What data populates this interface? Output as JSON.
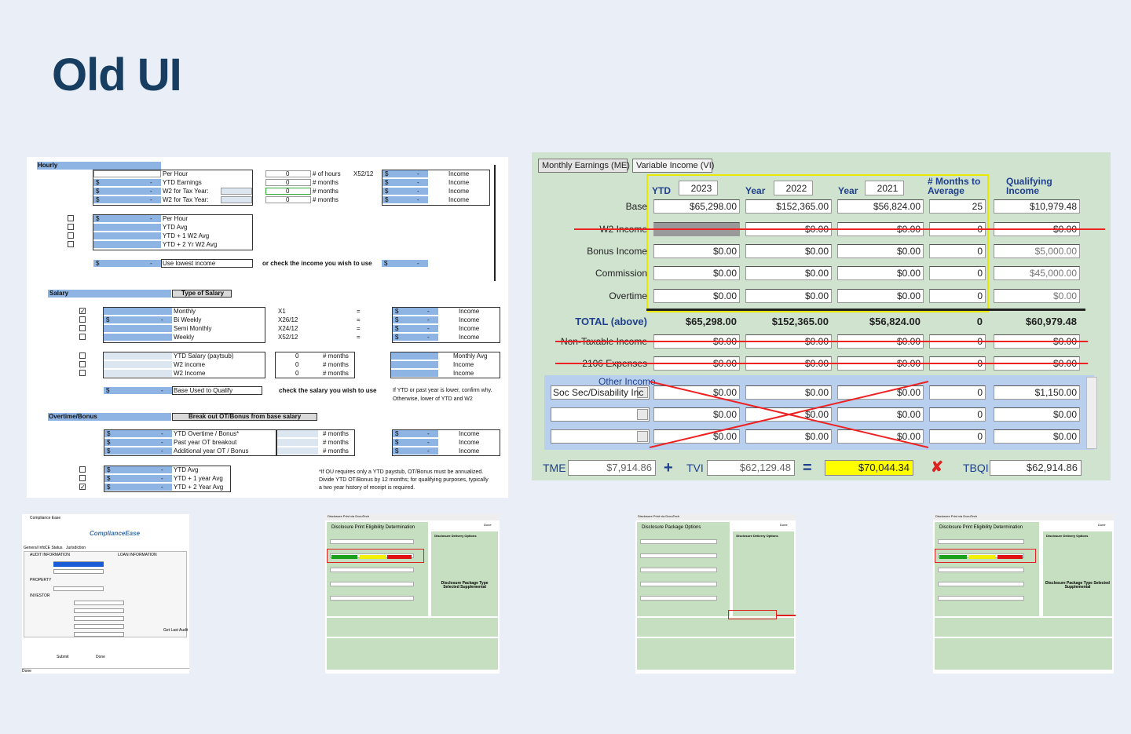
{
  "title": "Old UI",
  "worksheet": {
    "symbols": {
      "dollar": "$",
      "dash": "-"
    },
    "hourly": {
      "header": "Hourly",
      "rows": [
        "Per Hour",
        "YTD Earnings",
        "W2 for Tax Year:",
        "W2 for Tax Year:"
      ],
      "inputs": [
        "0",
        "0",
        "0",
        "0"
      ],
      "units": [
        "# of hours",
        "# months",
        "# months",
        "# months"
      ],
      "formula": "X52/12",
      "result": "Income",
      "averages": [
        "Per Hour",
        "YTD Avg",
        "YTD + 1 W2 Avg",
        "YTD + 2 Yr W2 Avg"
      ],
      "lowest": "Use lowest income",
      "choose": "or check the income you wish to use"
    },
    "salary": {
      "header": "Salary",
      "type_label": "Type of Salary",
      "rows": [
        "Monthly",
        "Bi Weekly",
        "Semi Monthly",
        "Weekly"
      ],
      "checked": [
        true,
        false,
        false,
        false
      ],
      "factors": [
        "X1",
        "X26/12",
        "X24/12",
        "X52/12"
      ],
      "equals": "=",
      "result": "Income",
      "ytd_rows": [
        "YTD Salary (paytsub)",
        "W2 income",
        "W2 Income"
      ],
      "ytd_inputs": [
        "0",
        "0",
        "0"
      ],
      "months": "# months",
      "avg_labels": [
        "Monthly Avg",
        "Income",
        "Income"
      ],
      "base": "Base Used to Qualify",
      "choose": "check the salary you wish to use",
      "note": [
        "If YTD or past year is lower, confirm why.",
        "Otherwise, lower of YTD and W2"
      ]
    },
    "overtime": {
      "header": "Overtime/Bonus",
      "subheader": "Break out OT/Bonus from base salary",
      "rows": [
        "YTD Overtime / Bonus*",
        "Past year OT breakout",
        "Additional year OT / Bonus"
      ],
      "months": "# months",
      "result": "Income",
      "averages": [
        "YTD Avg",
        "YTD + 1 year Avg",
        "YTD + 2 Year Avg"
      ],
      "checked": [
        false,
        false,
        true
      ],
      "note": [
        "*If OU requires only a YTD paystub, OT/Bonus must be annualized.",
        "Divide YTD OT/Bonus by 12 months; for qualifying purposes, typically",
        "a two year history of receipt is required."
      ]
    }
  },
  "variable_income": {
    "tabs": [
      "Monthly Earnings (ME)",
      "Variable Income (VI)"
    ],
    "headers": {
      "ytd": "YTD",
      "year1": "2023",
      "year_label": "Year",
      "year2": "2022",
      "year3": "2021",
      "months": "# Months to Average",
      "qualifying": "Qualifying Income"
    },
    "rows": [
      {
        "label": "Base",
        "values": [
          "$65,298.00",
          "$152,365.00",
          "$56,824.00",
          "25",
          "$10,979.48"
        ]
      },
      {
        "label": "W2 Income",
        "values": [
          null,
          "$0.00",
          "$0.00",
          "0",
          "$0.00"
        ],
        "struck": true
      },
      {
        "label": "Bonus Income",
        "values": [
          "$0.00",
          "$0.00",
          "$0.00",
          "0",
          "$5,000.00"
        ]
      },
      {
        "label": "Commission",
        "values": [
          "$0.00",
          "$0.00",
          "$0.00",
          "0",
          "$45,000.00"
        ]
      },
      {
        "label": "Overtime",
        "values": [
          "$0.00",
          "$0.00",
          "$0.00",
          "0",
          "$0.00"
        ]
      },
      {
        "label": "TOTAL (above)",
        "values": [
          "$65,298.00",
          "$152,365.00",
          "$56,824.00",
          "0",
          "$60,979.48"
        ],
        "total": true
      },
      {
        "label": "Non-Taxable Income",
        "values": [
          "$0.00",
          "$0.00",
          "$0.00",
          "0",
          "$0.00"
        ],
        "struck": true
      },
      {
        "label": "2106 Expenses",
        "values": [
          "$0.00",
          "$0.00",
          "$0.00",
          "0",
          "$0.00"
        ],
        "struck": true
      }
    ],
    "other_header": "Other Income",
    "other_rows": [
      {
        "dropdown": "Soc Sec/Disability Inc",
        "values": [
          "$0.00",
          "$0.00",
          "$0.00",
          "0",
          "$1,150.00"
        ]
      },
      {
        "dropdown": null,
        "values": [
          "$0.00",
          "$0.00",
          "$0.00",
          "0",
          "$0.00"
        ]
      },
      {
        "dropdown": null,
        "values": [
          "$0.00",
          "$0.00",
          "$0.00",
          "0",
          "$0.00"
        ]
      }
    ],
    "totals": {
      "tme_label": "TME",
      "tme": "$7,914.86",
      "plus": "+",
      "tvi_label": "TVI",
      "tvi": "$62,129.48",
      "equals": "=",
      "sum": "$70,044.34",
      "cross": "✘",
      "tbqi_label": "TBQI",
      "tbqi": "$62,914.86"
    }
  },
  "thumbnails": [
    {
      "window": "Compliance Ease",
      "logo": "ComplianceEase",
      "tabs": [
        "General Info",
        "CE Status",
        "Jurisdiction"
      ],
      "sections": [
        "AUDIT INFORMATION",
        "LOAN INFORMATION",
        "PROPERTY",
        "INVESTOR"
      ],
      "buttons": [
        "Submit",
        "Done",
        "Get Last Audit"
      ],
      "status": "Done"
    },
    {
      "window": "Disclosure Print via DocuTech",
      "heading": "Disclosure Print Eligibility Determination",
      "options": "Disclosure Delivery Options",
      "package": "Disclosure Package Type Selected Supplemental",
      "button": "Done"
    },
    {
      "window": "Disclosure Print via DocuTech",
      "heading": "Disclosure Package Options",
      "options": "Disclosure Delivery Options",
      "button": "Done"
    },
    {
      "window": "Disclosure Print via DocuTech",
      "heading": "Disclosure Print Eligibility Determination",
      "options": "Disclosure Delivery Options",
      "package": "Disclosure Package Type Selected Supplemental",
      "button": "Done"
    }
  ]
}
